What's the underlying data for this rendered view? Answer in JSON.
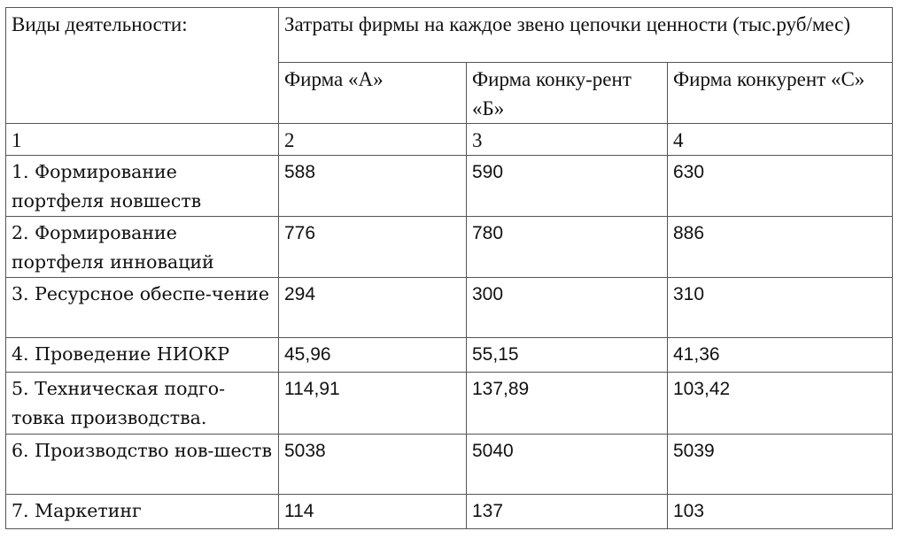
{
  "header": {
    "activity_label": "Виды деятельности:",
    "costs_label": "Затраты фирмы на каждое звено цепочки ценности (тыс.руб/мес)",
    "firms": [
      "Фирма «А»",
      "Фирма конку-рент «Б»",
      "Фирма конкурент «С»"
    ]
  },
  "numbering": [
    "1",
    "2",
    "3",
    "4"
  ],
  "rows": [
    {
      "activity": "1. Формирование портфеля новшеств",
      "a": "588",
      "b": "590",
      "c": "630"
    },
    {
      "activity": "2. Формирование портфеля инноваций",
      "a": "776",
      "b": "780",
      "c": "886"
    },
    {
      "activity": "3. Ресурсное обеспе-чение",
      "a": "294",
      "b": "300",
      "c": "310"
    },
    {
      "activity": "4. Проведение НИОКР",
      "a": "45,96",
      "b": "55,15",
      "c": "41,36"
    },
    {
      "activity": "5. Техническая подго-товка производства.",
      "a": "114,91",
      "b": "137,89",
      "c": "103,42"
    },
    {
      "activity": "6. Производство нов-шеств",
      "a": "5038",
      "b": "5040",
      "c": "5039"
    },
    {
      "activity": "7. Маркетинг",
      "a": "114",
      "b": "137",
      "c": "103"
    }
  ]
}
